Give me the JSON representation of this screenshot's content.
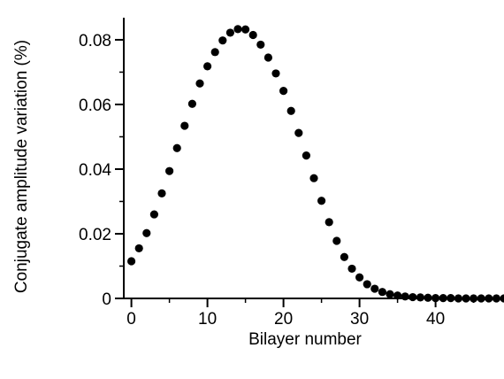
{
  "chart_data": {
    "type": "scatter",
    "xlabel": "Bilayer number",
    "ylabel": "Conjugate amplitude variation (%)",
    "xlim": [
      -1,
      49
    ],
    "ylim": [
      0,
      0.083
    ],
    "x_ticks": [
      0,
      10,
      20,
      30,
      40
    ],
    "y_ticks": [
      0,
      0.02,
      0.04,
      0.06,
      0.08
    ],
    "x_tick_labels": [
      "0",
      "10",
      "20",
      "30",
      "40"
    ],
    "y_tick_labels": [
      "0",
      "0.02",
      "0.04",
      "0.06",
      "0.08"
    ],
    "grid": false,
    "marker_color": "#000000",
    "series": [
      {
        "x": [
          0,
          1,
          2,
          3,
          4,
          5,
          6,
          7,
          8,
          9,
          10,
          11,
          12,
          13,
          14,
          15,
          16,
          17,
          18,
          19,
          20,
          21,
          22,
          23,
          24,
          25,
          26,
          27,
          28,
          29,
          30,
          31,
          32,
          33,
          34,
          35,
          36,
          37,
          38,
          39,
          40,
          41,
          42,
          43,
          44,
          45,
          46,
          47,
          48,
          49
        ],
        "values": [
          0.0115,
          0.0155,
          0.0202,
          0.026,
          0.0325,
          0.0394,
          0.0465,
          0.0534,
          0.0602,
          0.0665,
          0.0718,
          0.0762,
          0.0798,
          0.0822,
          0.0833,
          0.0832,
          0.0815,
          0.0785,
          0.0745,
          0.0696,
          0.0642,
          0.058,
          0.0512,
          0.0442,
          0.0372,
          0.0302,
          0.0236,
          0.0178,
          0.0128,
          0.0092,
          0.0065,
          0.0044,
          0.003,
          0.002,
          0.0013,
          0.0009,
          0.0006,
          0.0004,
          0.0003,
          0.0002,
          0.0001,
          0.0001,
          0.0001,
          0.0,
          0.0,
          0.0,
          0.0,
          0.0,
          0.0,
          0.0
        ]
      }
    ]
  }
}
